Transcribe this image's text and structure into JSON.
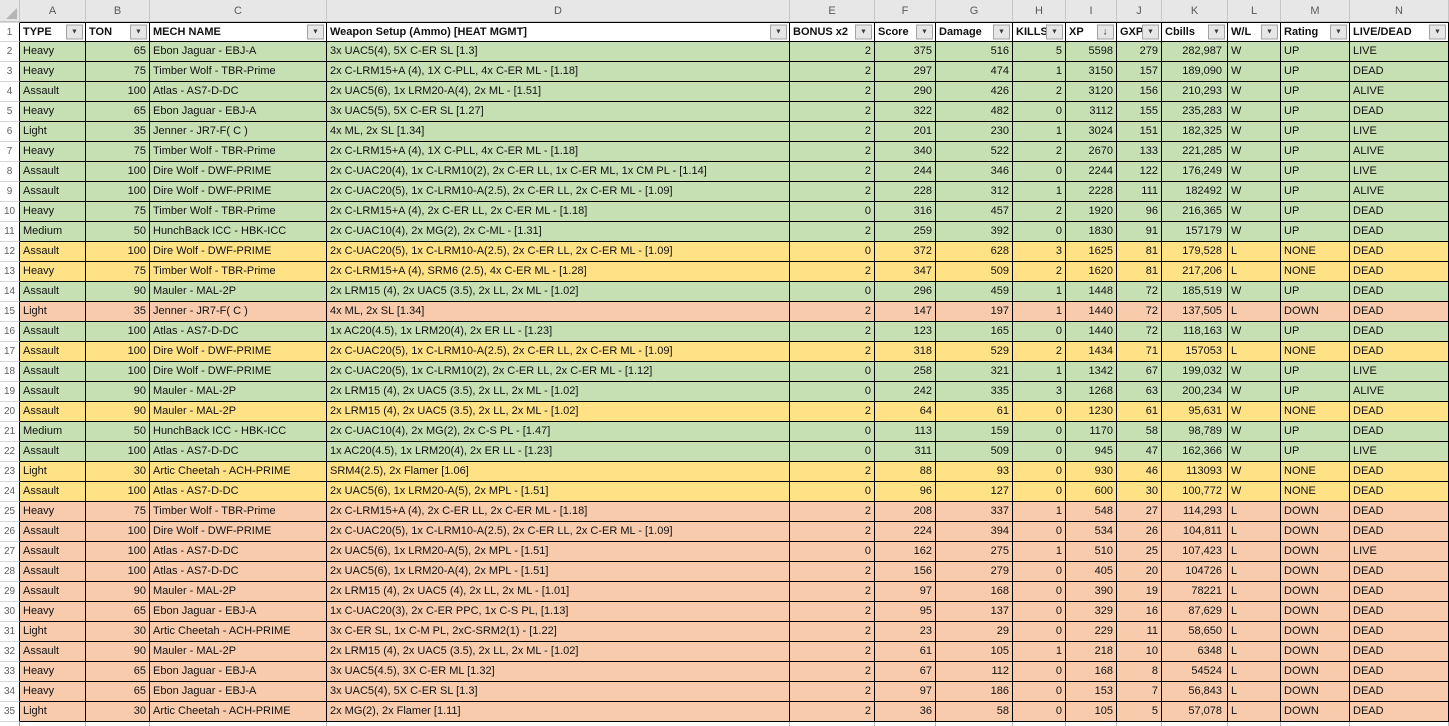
{
  "header": {
    "row_number": "1"
  },
  "icons": {
    "filter_dropdown": "▼",
    "sort_descending": "↓"
  },
  "colors": {
    "row_green": "#c6e0b4",
    "row_yellow": "#ffe285",
    "row_orange": "#f8cbad",
    "header_bg": "#ffffff",
    "chrome_bg": "#e7e7e7"
  },
  "columns": [
    {
      "letter": "A",
      "label": "TYPE",
      "key": "type",
      "filter": "dropdown"
    },
    {
      "letter": "B",
      "label": "TON",
      "key": "ton",
      "filter": "dropdown"
    },
    {
      "letter": "C",
      "label": "MECH NAME",
      "key": "mech",
      "filter": "dropdown"
    },
    {
      "letter": "D",
      "label": "Weapon Setup (Ammo) [HEAT MGMT]",
      "key": "weapons",
      "filter": "dropdown"
    },
    {
      "letter": "E",
      "label": "BONUS x2",
      "key": "bonus",
      "filter": "dropdown"
    },
    {
      "letter": "F",
      "label": "Score",
      "key": "score",
      "filter": "dropdown"
    },
    {
      "letter": "G",
      "label": "Damage",
      "key": "damage",
      "filter": "dropdown"
    },
    {
      "letter": "H",
      "label": "KILLS",
      "key": "kills",
      "filter": "dropdown"
    },
    {
      "letter": "I",
      "label": "XP",
      "key": "xp",
      "filter": "dropdown",
      "sort": "descending"
    },
    {
      "letter": "J",
      "label": "GXP",
      "key": "gxp",
      "filter": "dropdown"
    },
    {
      "letter": "K",
      "label": "Cbills",
      "key": "cbills",
      "filter": "dropdown"
    },
    {
      "letter": "L",
      "label": "W/L",
      "key": "wl",
      "filter": "dropdown"
    },
    {
      "letter": "M",
      "label": "Rating",
      "key": "rating",
      "filter": "dropdown"
    },
    {
      "letter": "N",
      "label": "LIVE/DEAD",
      "key": "live",
      "filter": "dropdown"
    }
  ],
  "rows": [
    {
      "n": "2",
      "band": "green",
      "type": "Heavy",
      "ton": "65",
      "mech": "Ebon Jaguar - EBJ-A",
      "weapons": "3x UAC5(4), 5X C-ER SL [1.3]",
      "bonus": "2",
      "score": "375",
      "damage": "516",
      "kills": "5",
      "xp": "5598",
      "gxp": "279",
      "cbills": "282,987",
      "wl": "W",
      "rating": "UP",
      "live": "LIVE"
    },
    {
      "n": "3",
      "band": "green",
      "type": "Heavy",
      "ton": "75",
      "mech": "Timber Wolf - TBR-Prime",
      "weapons": "2x C-LRM15+A (4), 1X C-PLL, 4x C-ER ML - [1.18]",
      "bonus": "2",
      "score": "297",
      "damage": "474",
      "kills": "1",
      "xp": "3150",
      "gxp": "157",
      "cbills": "189,090",
      "wl": "W",
      "rating": "UP",
      "live": "DEAD"
    },
    {
      "n": "4",
      "band": "green",
      "type": "Assault",
      "ton": "100",
      "mech": "Atlas - AS7-D-DC",
      "weapons": "2x UAC5(6), 1x LRM20-A(4), 2x ML - [1.51]",
      "bonus": "2",
      "score": "290",
      "damage": "426",
      "kills": "2",
      "xp": "3120",
      "gxp": "156",
      "cbills": "210,293",
      "wl": "W",
      "rating": "UP",
      "live": "ALIVE"
    },
    {
      "n": "5",
      "band": "green",
      "type": "Heavy",
      "ton": "65",
      "mech": "Ebon Jaguar - EBJ-A",
      "weapons": "3x UAC5(5), 5X C-ER SL [1.27]",
      "bonus": "2",
      "score": "322",
      "damage": "482",
      "kills": "0",
      "xp": "3112",
      "gxp": "155",
      "cbills": "235,283",
      "wl": "W",
      "rating": "UP",
      "live": "DEAD"
    },
    {
      "n": "6",
      "band": "green",
      "type": "Light",
      "ton": "35",
      "mech": "Jenner - JR7-F( C )",
      "weapons": "4x ML, 2x SL [1.34]",
      "bonus": "2",
      "score": "201",
      "damage": "230",
      "kills": "1",
      "xp": "3024",
      "gxp": "151",
      "cbills": "182,325",
      "wl": "W",
      "rating": "UP",
      "live": "LIVE"
    },
    {
      "n": "7",
      "band": "green",
      "type": "Heavy",
      "ton": "75",
      "mech": "Timber Wolf - TBR-Prime",
      "weapons": "2x C-LRM15+A (4), 1X C-PLL, 4x C-ER ML - [1.18]",
      "bonus": "2",
      "score": "340",
      "damage": "522",
      "kills": "2",
      "xp": "2670",
      "gxp": "133",
      "cbills": "221,285",
      "wl": "W",
      "rating": "UP",
      "live": "ALIVE"
    },
    {
      "n": "8",
      "band": "green",
      "type": "Assault",
      "ton": "100",
      "mech": "Dire Wolf - DWF-PRIME",
      "weapons": "2x C-UAC20(4), 1x C-LRM10(2), 2x C-ER LL, 1x C-ER ML, 1x CM PL - [1.14]",
      "bonus": "2",
      "score": "244",
      "damage": "346",
      "kills": "0",
      "xp": "2244",
      "gxp": "122",
      "cbills": "176,249",
      "wl": "W",
      "rating": "UP",
      "live": "LIVE"
    },
    {
      "n": "9",
      "band": "green",
      "type": "Assault",
      "ton": "100",
      "mech": "Dire Wolf - DWF-PRIME",
      "weapons": "2x C-UAC20(5), 1x C-LRM10-A(2.5), 2x C-ER LL, 2x C-ER ML - [1.09]",
      "bonus": "2",
      "score": "228",
      "damage": "312",
      "kills": "1",
      "xp": "2228",
      "gxp": "111",
      "cbills": "182492",
      "wl": "W",
      "rating": "UP",
      "live": "ALIVE"
    },
    {
      "n": "10",
      "band": "green",
      "type": "Heavy",
      "ton": "75",
      "mech": "Timber Wolf - TBR-Prime",
      "weapons": "2x C-LRM15+A (4), 2x C-ER LL, 2x C-ER ML - [1.18]",
      "bonus": "0",
      "score": "316",
      "damage": "457",
      "kills": "2",
      "xp": "1920",
      "gxp": "96",
      "cbills": "216,365",
      "wl": "W",
      "rating": "UP",
      "live": "DEAD"
    },
    {
      "n": "11",
      "band": "green",
      "type": "Medium",
      "ton": "50",
      "mech": "HunchBack ICC - HBK-ICC",
      "weapons": "2x C-UAC10(4), 2x MG(2), 2x C-ML - [1.31]",
      "bonus": "2",
      "score": "259",
      "damage": "392",
      "kills": "0",
      "xp": "1830",
      "gxp": "91",
      "cbills": "157179",
      "wl": "W",
      "rating": "UP",
      "live": "DEAD"
    },
    {
      "n": "12",
      "band": "yellow",
      "type": "Assault",
      "ton": "100",
      "mech": "Dire Wolf - DWF-PRIME",
      "weapons": "2x C-UAC20(5), 1x C-LRM10-A(2.5), 2x C-ER LL, 2x C-ER ML - [1.09]",
      "bonus": "0",
      "score": "372",
      "damage": "628",
      "kills": "3",
      "xp": "1625",
      "gxp": "81",
      "cbills": "179,528",
      "wl": "L",
      "rating": "NONE",
      "live": "DEAD"
    },
    {
      "n": "13",
      "band": "yellow",
      "type": "Heavy",
      "ton": "75",
      "mech": "Timber Wolf - TBR-Prime",
      "weapons": "2x C-LRM15+A (4), SRM6 (2.5), 4x C-ER ML - [1.28]",
      "bonus": "2",
      "score": "347",
      "damage": "509",
      "kills": "2",
      "xp": "1620",
      "gxp": "81",
      "cbills": "217,206",
      "wl": "L",
      "rating": "NONE",
      "live": "DEAD"
    },
    {
      "n": "14",
      "band": "green",
      "type": "Assault",
      "ton": "90",
      "mech": "Mauler - MAL-2P",
      "weapons": "2x LRM15 (4), 2x UAC5 (3.5), 2x LL, 2x ML - [1.02]",
      "bonus": "0",
      "score": "296",
      "damage": "459",
      "kills": "1",
      "xp": "1448",
      "gxp": "72",
      "cbills": "185,519",
      "wl": "W",
      "rating": "UP",
      "live": "DEAD"
    },
    {
      "n": "15",
      "band": "orange",
      "type": "Light",
      "ton": "35",
      "mech": "Jenner - JR7-F( C )",
      "weapons": "4x ML, 2x SL [1.34]",
      "bonus": "2",
      "score": "147",
      "damage": "197",
      "kills": "1",
      "xp": "1440",
      "gxp": "72",
      "cbills": "137,505",
      "wl": "L",
      "rating": "DOWN",
      "live": "DEAD"
    },
    {
      "n": "16",
      "band": "green",
      "type": "Assault",
      "ton": "100",
      "mech": "Atlas - AS7-D-DC",
      "weapons": "1x AC20(4.5), 1x LRM20(4), 2x ER LL - [1.23]",
      "bonus": "2",
      "score": "123",
      "damage": "165",
      "kills": "0",
      "xp": "1440",
      "gxp": "72",
      "cbills": "118,163",
      "wl": "W",
      "rating": "UP",
      "live": "DEAD"
    },
    {
      "n": "17",
      "band": "yellow",
      "type": "Assault",
      "ton": "100",
      "mech": "Dire Wolf - DWF-PRIME",
      "weapons": "2x C-UAC20(5), 1x C-LRM10-A(2.5), 2x C-ER LL, 2x C-ER ML - [1.09]",
      "bonus": "2",
      "score": "318",
      "damage": "529",
      "kills": "2",
      "xp": "1434",
      "gxp": "71",
      "cbills": "157053",
      "wl": "L",
      "rating": "NONE",
      "live": "DEAD"
    },
    {
      "n": "18",
      "band": "green",
      "type": "Assault",
      "ton": "100",
      "mech": "Dire Wolf - DWF-PRIME",
      "weapons": "2x C-UAC20(5), 1x C-LRM10(2), 2x C-ER LL, 2x C-ER ML - [1.12]",
      "bonus": "0",
      "score": "258",
      "damage": "321",
      "kills": "1",
      "xp": "1342",
      "gxp": "67",
      "cbills": "199,032",
      "wl": "W",
      "rating": "UP",
      "live": "LIVE"
    },
    {
      "n": "19",
      "band": "green",
      "type": "Assault",
      "ton": "90",
      "mech": "Mauler - MAL-2P",
      "weapons": "2x LRM15 (4), 2x UAC5 (3.5), 2x LL, 2x ML - [1.02]",
      "bonus": "0",
      "score": "242",
      "damage": "335",
      "kills": "3",
      "xp": "1268",
      "gxp": "63",
      "cbills": "200,234",
      "wl": "W",
      "rating": "UP",
      "live": "ALIVE"
    },
    {
      "n": "20",
      "band": "yellow",
      "type": "Assault",
      "ton": "90",
      "mech": "Mauler - MAL-2P",
      "weapons": "2x LRM15 (4), 2x UAC5 (3.5), 2x LL, 2x ML - [1.02]",
      "bonus": "2",
      "score": "64",
      "damage": "61",
      "kills": "0",
      "xp": "1230",
      "gxp": "61",
      "cbills": "95,631",
      "wl": "W",
      "rating": "NONE",
      "live": "DEAD"
    },
    {
      "n": "21",
      "band": "green",
      "type": "Medium",
      "ton": "50",
      "mech": "HunchBack ICC - HBK-ICC",
      "weapons": "2x C-UAC10(4), 2x MG(2), 2x C-S PL - [1.47]",
      "bonus": "0",
      "score": "113",
      "damage": "159",
      "kills": "0",
      "xp": "1170",
      "gxp": "58",
      "cbills": "98,789",
      "wl": "W",
      "rating": "UP",
      "live": "DEAD"
    },
    {
      "n": "22",
      "band": "green",
      "type": "Assault",
      "ton": "100",
      "mech": "Atlas - AS7-D-DC",
      "weapons": "1x AC20(4.5), 1x LRM20(4), 2x ER LL - [1.23]",
      "bonus": "0",
      "score": "311",
      "damage": "509",
      "kills": "0",
      "xp": "945",
      "gxp": "47",
      "cbills": "162,366",
      "wl": "W",
      "rating": "UP",
      "live": "LIVE"
    },
    {
      "n": "23",
      "band": "yellow",
      "type": "Light",
      "ton": "30",
      "mech": "Artic Cheetah - ACH-PRIME",
      "weapons": "SRM4(2.5), 2x Flamer [1.06]",
      "bonus": "2",
      "score": "88",
      "damage": "93",
      "kills": "0",
      "xp": "930",
      "gxp": "46",
      "cbills": "113093",
      "wl": "W",
      "rating": "NONE",
      "live": "DEAD"
    },
    {
      "n": "24",
      "band": "yellow",
      "type": "Assault",
      "ton": "100",
      "mech": "Atlas - AS7-D-DC",
      "weapons": "2x UAC5(6), 1x LRM20-A(5), 2x MPL - [1.51]",
      "bonus": "0",
      "score": "96",
      "damage": "127",
      "kills": "0",
      "xp": "600",
      "gxp": "30",
      "cbills": "100,772",
      "wl": "W",
      "rating": "NONE",
      "live": "DEAD"
    },
    {
      "n": "25",
      "band": "orange",
      "type": "Heavy",
      "ton": "75",
      "mech": "Timber Wolf - TBR-Prime",
      "weapons": "2x C-LRM15+A (4), 2x C-ER LL, 2x C-ER ML - [1.18]",
      "bonus": "2",
      "score": "208",
      "damage": "337",
      "kills": "1",
      "xp": "548",
      "gxp": "27",
      "cbills": "114,293",
      "wl": "L",
      "rating": "DOWN",
      "live": "DEAD"
    },
    {
      "n": "26",
      "band": "orange",
      "type": "Assault",
      "ton": "100",
      "mech": "Dire Wolf - DWF-PRIME",
      "weapons": "2x C-UAC20(5), 1x C-LRM10-A(2.5), 2x C-ER LL, 2x C-ER ML - [1.09]",
      "bonus": "2",
      "score": "224",
      "damage": "394",
      "kills": "0",
      "xp": "534",
      "gxp": "26",
      "cbills": "104,811",
      "wl": "L",
      "rating": "DOWN",
      "live": "DEAD"
    },
    {
      "n": "27",
      "band": "orange",
      "type": "Assault",
      "ton": "100",
      "mech": "Atlas - AS7-D-DC",
      "weapons": "2x UAC5(6), 1x LRM20-A(5), 2x MPL - [1.51]",
      "bonus": "0",
      "score": "162",
      "damage": "275",
      "kills": "1",
      "xp": "510",
      "gxp": "25",
      "cbills": "107,423",
      "wl": "L",
      "rating": "DOWN",
      "live": "LIVE"
    },
    {
      "n": "28",
      "band": "orange",
      "type": "Assault",
      "ton": "100",
      "mech": "Atlas - AS7-D-DC",
      "weapons": "2x UAC5(6), 1x LRM20-A(4), 2x MPL - [1.51]",
      "bonus": "2",
      "score": "156",
      "damage": "279",
      "kills": "0",
      "xp": "405",
      "gxp": "20",
      "cbills": "104726",
      "wl": "L",
      "rating": "DOWN",
      "live": "DEAD"
    },
    {
      "n": "29",
      "band": "orange",
      "type": "Assault",
      "ton": "90",
      "mech": "Mauler - MAL-2P",
      "weapons": "2x LRM15 (4), 2x UAC5 (4), 2x LL, 2x ML - [1.01]",
      "bonus": "2",
      "score": "97",
      "damage": "168",
      "kills": "0",
      "xp": "390",
      "gxp": "19",
      "cbills": "78221",
      "wl": "L",
      "rating": "DOWN",
      "live": "DEAD"
    },
    {
      "n": "30",
      "band": "orange",
      "type": "Heavy",
      "ton": "65",
      "mech": "Ebon Jaguar - EBJ-A",
      "weapons": "1x C-UAC20(3), 2x C-ER PPC, 1x C-S PL, [1.13]",
      "bonus": "2",
      "score": "95",
      "damage": "137",
      "kills": "0",
      "xp": "329",
      "gxp": "16",
      "cbills": "87,629",
      "wl": "L",
      "rating": "DOWN",
      "live": "DEAD"
    },
    {
      "n": "31",
      "band": "orange",
      "type": "Light",
      "ton": "30",
      "mech": "Artic Cheetah - ACH-PRIME",
      "weapons": "3x C-ER SL, 1x C-M PL, 2xC-SRM2(1) - [1.22]",
      "bonus": "2",
      "score": "23",
      "damage": "29",
      "kills": "0",
      "xp": "229",
      "gxp": "11",
      "cbills": "58,650",
      "wl": "L",
      "rating": "DOWN",
      "live": "DEAD"
    },
    {
      "n": "32",
      "band": "orange",
      "type": "Assault",
      "ton": "90",
      "mech": "Mauler - MAL-2P",
      "weapons": "2x LRM15 (4), 2x UAC5 (3.5), 2x LL, 2x ML - [1.02]",
      "bonus": "2",
      "score": "61",
      "damage": "105",
      "kills": "1",
      "xp": "218",
      "gxp": "10",
      "cbills": "6348",
      "wl": "L",
      "rating": "DOWN",
      "live": "DEAD"
    },
    {
      "n": "33",
      "band": "orange",
      "type": "Heavy",
      "ton": "65",
      "mech": "Ebon Jaguar - EBJ-A",
      "weapons": "3x UAC5(4.5), 3X C-ER ML [1.32]",
      "bonus": "2",
      "score": "67",
      "damage": "112",
      "kills": "0",
      "xp": "168",
      "gxp": "8",
      "cbills": "54524",
      "wl": "L",
      "rating": "DOWN",
      "live": "DEAD"
    },
    {
      "n": "34",
      "band": "orange",
      "type": "Heavy",
      "ton": "65",
      "mech": "Ebon Jaguar - EBJ-A",
      "weapons": "3x UAC5(4), 5X C-ER SL [1.3]",
      "bonus": "2",
      "score": "97",
      "damage": "186",
      "kills": "0",
      "xp": "153",
      "gxp": "7",
      "cbills": "56,843",
      "wl": "L",
      "rating": "DOWN",
      "live": "DEAD"
    },
    {
      "n": "35",
      "band": "orange",
      "type": "Light",
      "ton": "30",
      "mech": "Artic Cheetah - ACH-PRIME",
      "weapons": "2x MG(2), 2x Flamer [1.11]",
      "bonus": "2",
      "score": "36",
      "damage": "58",
      "kills": "0",
      "xp": "105",
      "gxp": "5",
      "cbills": "57,078",
      "wl": "L",
      "rating": "DOWN",
      "live": "DEAD"
    }
  ]
}
